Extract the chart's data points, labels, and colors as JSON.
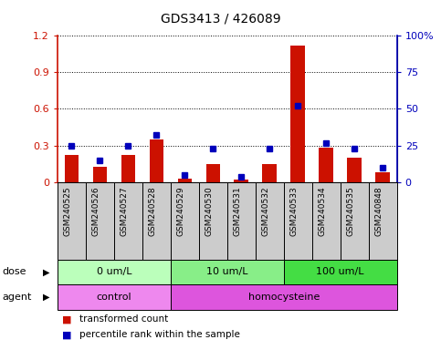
{
  "title": "GDS3413 / 426089",
  "samples": [
    "GSM240525",
    "GSM240526",
    "GSM240527",
    "GSM240528",
    "GSM240529",
    "GSM240530",
    "GSM240531",
    "GSM240532",
    "GSM240533",
    "GSM240534",
    "GSM240535",
    "GSM240848"
  ],
  "red_values": [
    0.22,
    0.13,
    0.22,
    0.35,
    0.03,
    0.15,
    0.02,
    0.15,
    1.12,
    0.28,
    0.2,
    0.08
  ],
  "blue_values": [
    25,
    15,
    25,
    32,
    5,
    23,
    4,
    23,
    52,
    27,
    23,
    10
  ],
  "ylim_left": [
    0,
    1.2
  ],
  "ylim_right": [
    0,
    100
  ],
  "yticks_left": [
    0,
    0.3,
    0.6,
    0.9,
    1.2
  ],
  "yticks_right": [
    0,
    25,
    50,
    75,
    100
  ],
  "yticklabels_left": [
    "0",
    "0.3",
    "0.6",
    "0.9",
    "1.2"
  ],
  "yticklabels_right": [
    "0",
    "25",
    "50",
    "75",
    "100%"
  ],
  "dose_groups": [
    {
      "label": "0 um/L",
      "start": 0,
      "end": 4,
      "color": "#bbffbb"
    },
    {
      "label": "10 um/L",
      "start": 4,
      "end": 8,
      "color": "#88ee88"
    },
    {
      "label": "100 um/L",
      "start": 8,
      "end": 12,
      "color": "#44dd44"
    }
  ],
  "agent_groups": [
    {
      "label": "control",
      "start": 0,
      "end": 4,
      "color": "#ee88ee"
    },
    {
      "label": "homocysteine",
      "start": 4,
      "end": 12,
      "color": "#dd55dd"
    }
  ],
  "dose_label": "dose",
  "agent_label": "agent",
  "red_color": "#cc1100",
  "blue_color": "#0000bb",
  "legend_red": "transformed count",
  "legend_blue": "percentile rank within the sample",
  "grid_color": "black",
  "xtick_bg": "#cccccc",
  "plot_bg": "white",
  "n_samples": 12,
  "group_separators": [
    3.5,
    7.5
  ]
}
